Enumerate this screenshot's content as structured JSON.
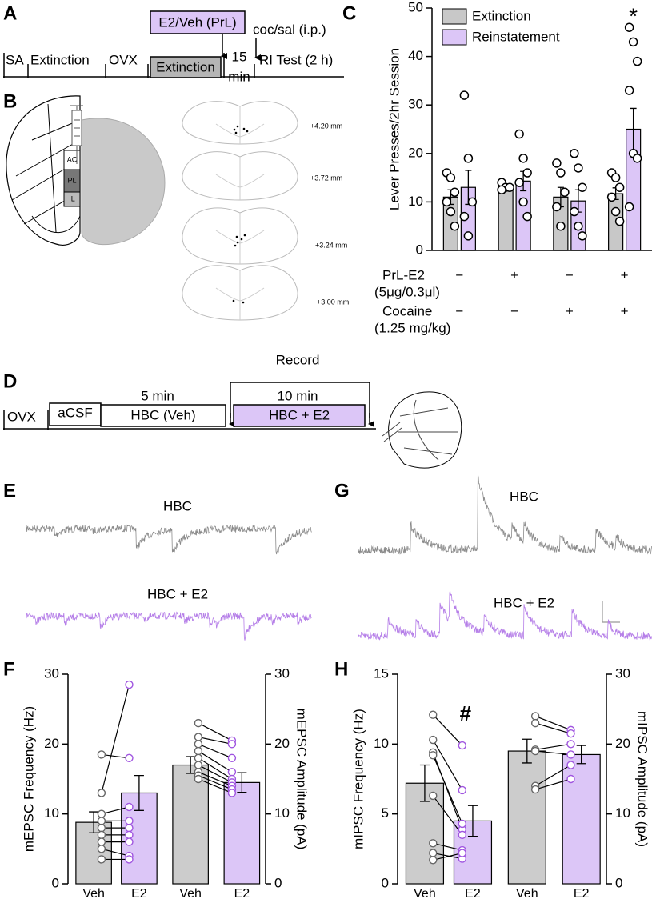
{
  "figure": {
    "letters": [
      "A",
      "B",
      "C",
      "D",
      "E",
      "F",
      "G",
      "H"
    ],
    "timeline_a": {
      "treatment": "E2/Veh (PrL)",
      "injection": "coc/sal (i.p.)",
      "phases": [
        "SA",
        "Extinction",
        "OVX",
        "Extinction"
      ],
      "delay": "15",
      "delay_unit": "min",
      "test": "RI Test (2 h)"
    },
    "histology_b": {
      "regions": [
        "AC",
        "PL",
        "IL"
      ],
      "levels": [
        "+4.20 mm",
        "+3.72 mm",
        "+3.24 mm",
        "+3.00 mm"
      ]
    },
    "timeline_d": {
      "record": "Record",
      "durations": [
        "5 min",
        "10 min"
      ],
      "phases": [
        "OVX",
        "aCSF",
        "HBC (Veh)",
        "HBC + E2"
      ]
    },
    "traces_e": [
      "HBC",
      "HBC + E2"
    ],
    "traces_g": [
      "HBC",
      "HBC + E2"
    ]
  },
  "chart_data": [
    {
      "type": "grouped-bar",
      "ylabel": "Lever Presses/2hr Session",
      "ylim": [
        0,
        50
      ],
      "yticks": [
        0,
        10,
        20,
        30,
        40,
        50
      ],
      "series": [
        {
          "name": "Extinction",
          "color": "#c8c8c8",
          "values": [
            11,
            13,
            11,
            11.7
          ],
          "errors": [
            1.5,
            0.5,
            2,
            1.2
          ],
          "points": [
            [
              16,
              15,
              12,
              10,
              8,
              5
            ],
            [
              14,
              13,
              13,
              12.5
            ],
            [
              18,
              16,
              12,
              9,
              5
            ],
            [
              16,
              15,
              13,
              11,
              8,
              6
            ]
          ]
        },
        {
          "name": "Reinstatement",
          "color": "#dcc6f7",
          "values": [
            13,
            14.3,
            10.2,
            25
          ],
          "errors": [
            3.5,
            2,
            2.3,
            4.3
          ],
          "points": [
            [
              32,
              19,
              10,
              7,
              3
            ],
            [
              24,
              19,
              16,
              14,
              10,
              7
            ],
            [
              20,
              17,
              13,
              8,
              5,
              3
            ],
            [
              46,
              43,
              39,
              33,
              20,
              19,
              9
            ]
          ]
        }
      ],
      "annotation": "*",
      "conditions": [
        {
          "label": "PrL-E2",
          "sublabel": "(5μg/0.3μl)",
          "levels": [
            "−",
            "+",
            "−",
            "+"
          ]
        },
        {
          "label": "Cocaine",
          "sublabel": "(1.25 mg/kg)",
          "levels": [
            "−",
            "−",
            "+",
            "+"
          ]
        }
      ]
    },
    {
      "type": "paired-bar",
      "ylim": [
        0,
        30
      ],
      "yticks": [
        0,
        10,
        20,
        30
      ],
      "y2lim": [
        0,
        30
      ],
      "y2ticks": [
        0,
        10,
        20,
        30
      ],
      "colors": [
        "#cccccc",
        "#dcc6f7"
      ],
      "point_colors": [
        "#666666",
        "#a055e0"
      ],
      "groups": [
        {
          "ylabel": "mEPSC Frequency (Hz)",
          "categories": [
            "Veh",
            "E2"
          ],
          "values": [
            8.8,
            13
          ],
          "errors": [
            1.5,
            2.5
          ],
          "points": [
            [
              13,
              18.5,
              10,
              9,
              8,
              7,
              6,
              5,
              3.5
            ],
            [
              28.5,
              18,
              11,
              9,
              8,
              7,
              6,
              4,
              3.5
            ]
          ]
        },
        {
          "ylabel": "mEPSC Amplitude (pA)",
          "axis": "y2",
          "categories": [
            "Veh",
            "E2"
          ],
          "values": [
            17,
            14.5
          ],
          "errors": [
            1.2,
            1.4
          ],
          "points": [
            [
              23,
              21,
              20,
              19,
              18,
              17,
              16,
              15.5,
              15
            ],
            [
              20.5,
              20,
              18,
              16,
              15,
              14.5,
              14,
              13.5,
              13
            ]
          ]
        }
      ]
    },
    {
      "type": "paired-bar",
      "ylim": [
        0,
        15
      ],
      "yticks": [
        0,
        5,
        10,
        15
      ],
      "y2lim": [
        0,
        30
      ],
      "y2ticks": [
        0,
        10,
        20,
        30
      ],
      "colors": [
        "#cccccc",
        "#dcc6f7"
      ],
      "point_colors": [
        "#666666",
        "#a055e0"
      ],
      "annotation": "#",
      "groups": [
        {
          "ylabel": "mIPSC Frequency (Hz)",
          "categories": [
            "Veh",
            "E2"
          ],
          "values": [
            7.2,
            4.5
          ],
          "errors": [
            1.3,
            1.1
          ],
          "points": [
            [
              12.1,
              10.3,
              9.4,
              9.2,
              6.3,
              2.9,
              2.2,
              1.7
            ],
            [
              9.9,
              6.7,
              3.9,
              4.3,
              3.5,
              2.4,
              1.8,
              2.2
            ]
          ]
        },
        {
          "ylabel": "mIPSC Amplitude (pA)",
          "axis": "y2",
          "categories": [
            "Veh",
            "E2"
          ],
          "values": [
            19,
            18.5
          ],
          "errors": [
            1.7,
            1.3
          ],
          "points": [
            [
              24,
              23,
              19.2,
              19,
              14,
              13.5
            ],
            [
              22,
              21.5,
              20,
              18.5,
              17,
              15
            ]
          ]
        }
      ]
    }
  ]
}
